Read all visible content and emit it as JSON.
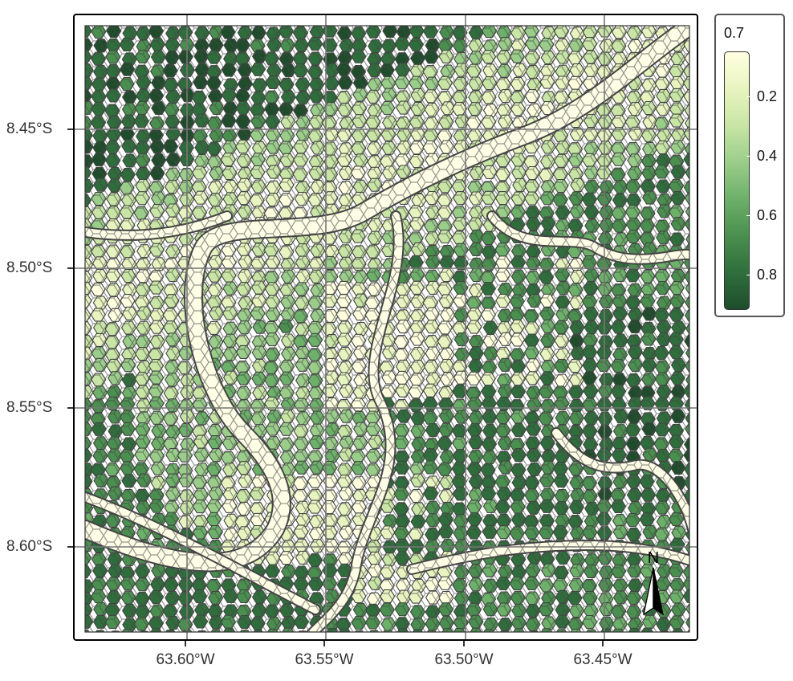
{
  "map": {
    "legend": {
      "title": "0.7",
      "ticks": [
        "0.2",
        "0.4",
        "0.6",
        "0.8"
      ],
      "tick_values": [
        0.2,
        0.4,
        0.6,
        0.8
      ],
      "range": [
        0.05,
        0.92
      ],
      "colors": [
        "#FFFFE0",
        "#E8F4C0",
        "#C8E5A5",
        "#9ACD8A",
        "#6DB06A",
        "#4A8F4F",
        "#2F6E3C",
        "#1F4D2C"
      ]
    },
    "axes": {
      "y_labels": [
        "8.45°S",
        "8.50°S",
        "8.55°S",
        "8.60°S"
      ],
      "x_labels": [
        "63.60°W",
        "63.55°W",
        "63.50°W",
        "63.45°W"
      ]
    },
    "north_arrow": {
      "label": "N"
    },
    "colors": {
      "border": "#444444",
      "grid": "#777777",
      "river_fill": "#FEFDE6"
    }
  }
}
